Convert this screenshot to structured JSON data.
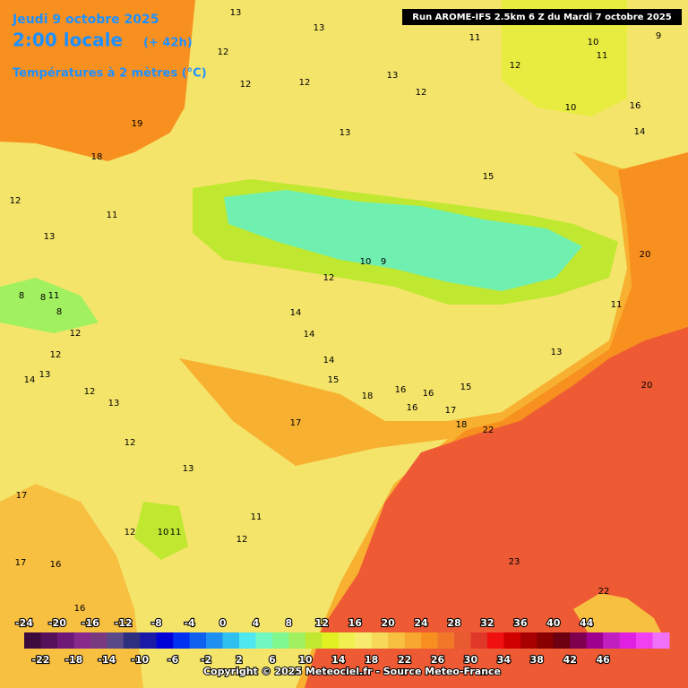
{
  "header": {
    "date": "Jeudi 9 octobre 2025",
    "time": "2:00 locale",
    "lead": "(+ 42h)",
    "variable": "Températures à 2 mètres (°C)"
  },
  "run": "Run AROME-IFS 2.5km 6 Z du Mardi 7 octobre 2025",
  "colorbar": {
    "top_ticks": [
      -24,
      -20,
      -16,
      -12,
      -8,
      -4,
      0,
      4,
      8,
      12,
      16,
      20,
      24,
      28,
      32,
      36,
      40,
      44
    ],
    "bottom_ticks": [
      -22,
      -18,
      -14,
      -10,
      -6,
      -2,
      2,
      6,
      10,
      14,
      18,
      22,
      26,
      30,
      34,
      38,
      42,
      46
    ],
    "colors": [
      "#3c0a3c",
      "#55105a",
      "#6e1878",
      "#882a8c",
      "#7a3a80",
      "#5a4a88",
      "#2f2f80",
      "#1a1aa8",
      "#0000d8",
      "#0030f0",
      "#1060f0",
      "#2090f0",
      "#30c0f0",
      "#50e8f0",
      "#70f8c0",
      "#80f890",
      "#a0f060",
      "#c0e830",
      "#e0f020",
      "#f0f050",
      "#f8ec70",
      "#f8d858",
      "#f8c040",
      "#f8a830",
      "#f89020",
      "#f07828",
      "#e85a30",
      "#e03828",
      "#f01010",
      "#d00000",
      "#a80000",
      "#880000",
      "#6a0010",
      "#800050",
      "#a00090",
      "#c020c0",
      "#e020e0",
      "#f040f0",
      "#f070f8"
    ]
  },
  "map_labels": [
    13,
    13,
    12,
    12,
    12,
    13,
    12,
    11,
    12,
    10,
    11,
    9,
    10,
    16,
    14,
    13,
    15,
    19,
    18,
    12,
    11,
    13,
    8,
    8,
    11,
    8,
    12,
    20,
    11,
    10,
    9,
    12,
    14,
    14,
    14,
    15,
    18,
    16,
    16,
    15,
    16,
    17,
    18,
    22,
    17,
    12,
    13,
    14,
    12,
    13,
    12,
    13,
    17,
    11,
    12,
    12,
    10,
    11,
    17,
    16,
    16,
    23,
    22,
    20,
    13
  ],
  "copyright": "Copyright © 2025 Meteociel.fr - Source Meteo-France"
}
